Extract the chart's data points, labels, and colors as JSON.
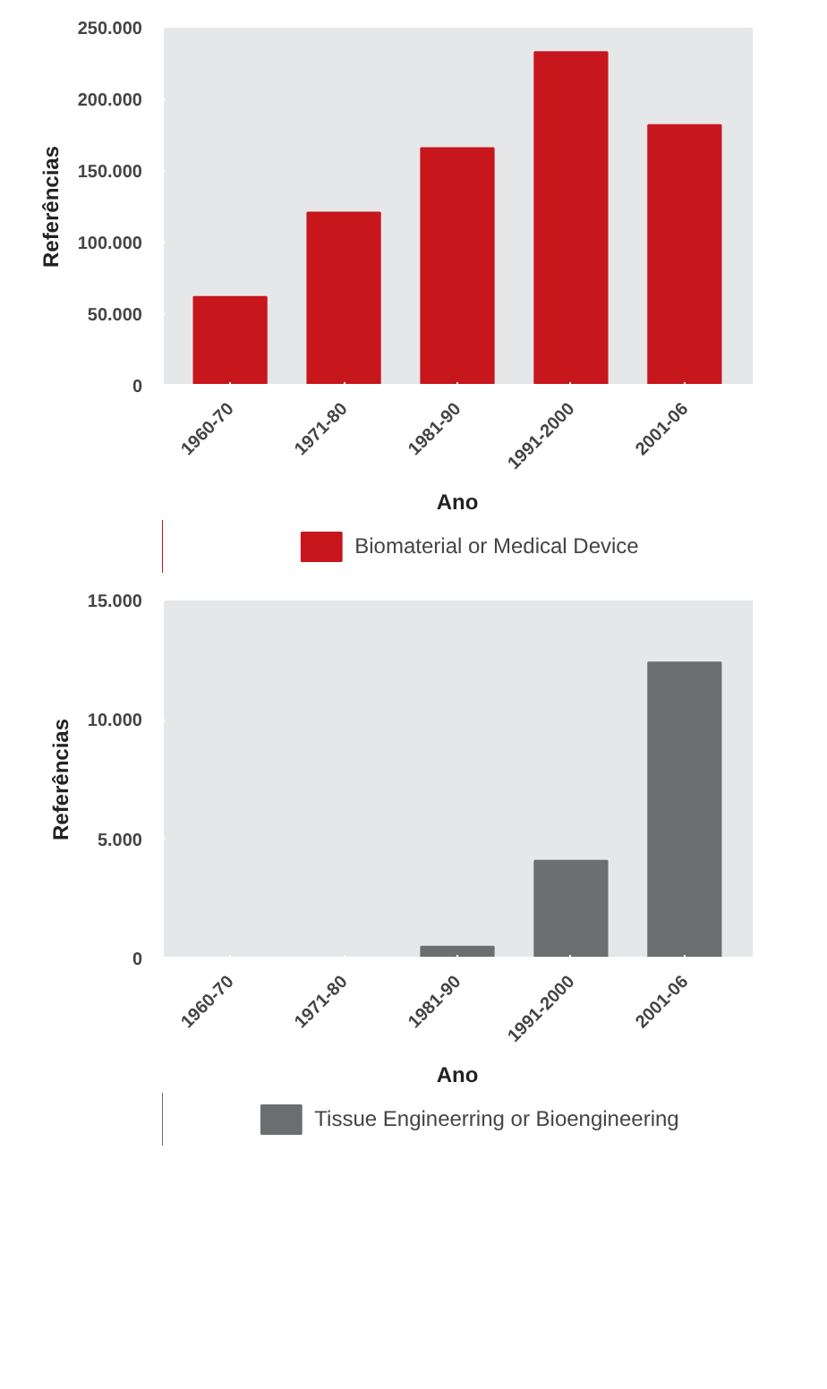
{
  "chart_data": [
    {
      "type": "bar",
      "xlabel": "Ano",
      "ylabel": "Referências",
      "categories": [
        "1960-70",
        "1971-80",
        "1981-90",
        "1991-2000",
        "2001-06"
      ],
      "series": [
        {
          "name": "Biomaterial or Medical Device",
          "color": "#c8161d",
          "values": [
            62000,
            121000,
            166000,
            233000,
            182000
          ]
        }
      ],
      "ylim": [
        0,
        250000
      ],
      "yticks": [
        0,
        {
          "value": 50000,
          "label": "50.000"
        },
        {
          "value": 100000,
          "label": "100.000"
        },
        {
          "value": 150000,
          "label": "150.000"
        },
        {
          "value": 200000,
          "label": "200.000"
        },
        {
          "value": 250000,
          "label": "250.000"
        }
      ],
      "grid": false,
      "legend": "bottom"
    },
    {
      "type": "bar",
      "xlabel": "Ano",
      "ylabel": "Referências",
      "categories": [
        "1960-70",
        "1971-80",
        "1981-90",
        "1991-2000",
        "2001-06"
      ],
      "series": [
        {
          "name": "Tissue Engineerring or Bioengineering",
          "color": "#6d6e70",
          "values": [
            0,
            0,
            500,
            4100,
            12400
          ]
        }
      ],
      "ylim": [
        0,
        15000
      ],
      "yticks": [
        0,
        {
          "value": 5000,
          "label": "5.000"
        },
        {
          "value": 10000,
          "label": "10.000"
        },
        {
          "value": 15000,
          "label": "15.000"
        }
      ],
      "grid": false,
      "legend": "bottom"
    }
  ]
}
